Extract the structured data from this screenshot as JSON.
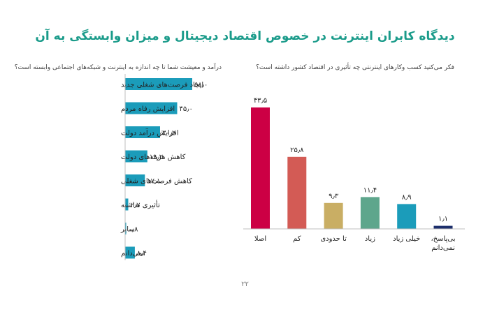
{
  "title": "دیدگاه کابران اینترنت در خصوص اقتصاد دیجیتال و میزان وابستگی به آن",
  "page_number": "۲۲",
  "chart_data": [
    {
      "type": "bar",
      "orientation": "horizontal",
      "title": "فکر می‌کنید کسب وکارهای اینترنتی چه تأثیری در اقتصاد کشور داشته است؟",
      "categories": [
        "ایجاد فرصت‌های شغلی جدید",
        "افزایش رفاه مردم",
        "افزایش درآمد دولت",
        "کاهش هزینه‌های دولت",
        "کاهش فرصت‌های شغلی",
        "تأثیری نداشته",
        "سایر",
        "نمی‌دانم"
      ],
      "values": [
        58.0,
        45.0,
        30.2,
        19.2,
        17.1,
        2.7,
        0.8,
        8.4
      ],
      "value_labels": [
        "۵۸٫۰",
        "۴۵٫۰",
        "۳۰٫۲",
        "۱۹٫۲",
        "۱۷٫۱",
        "۲٫۷",
        "۰٫۸",
        "۸٫۴"
      ],
      "xlim": [
        0,
        58
      ],
      "color": "#1b9cba"
    },
    {
      "type": "bar",
      "orientation": "vertical",
      "title": "درآمد و معیشت شما تا چه اندازه به اینترنت و شبکه‌های اجتماعی وابسته است؟",
      "categories": [
        "اصلا",
        "کم",
        "تا حدودی",
        "زیاد",
        "خیلی زیاد",
        "بی‌پاسخ، نمی‌دانم"
      ],
      "values": [
        43.5,
        25.8,
        9.3,
        11.4,
        8.9,
        1.1
      ],
      "value_labels": [
        "۴۳٫۵",
        "۲۵٫۸",
        "۹٫۳",
        "۱۱٫۴",
        "۸٫۹",
        "۱٫۱"
      ],
      "ylim": [
        0,
        43.5
      ],
      "colors": [
        "#cc0044",
        "#d35b55",
        "#c9ae64",
        "#5ea68c",
        "#1b9cba",
        "#1c2e6b"
      ]
    }
  ]
}
